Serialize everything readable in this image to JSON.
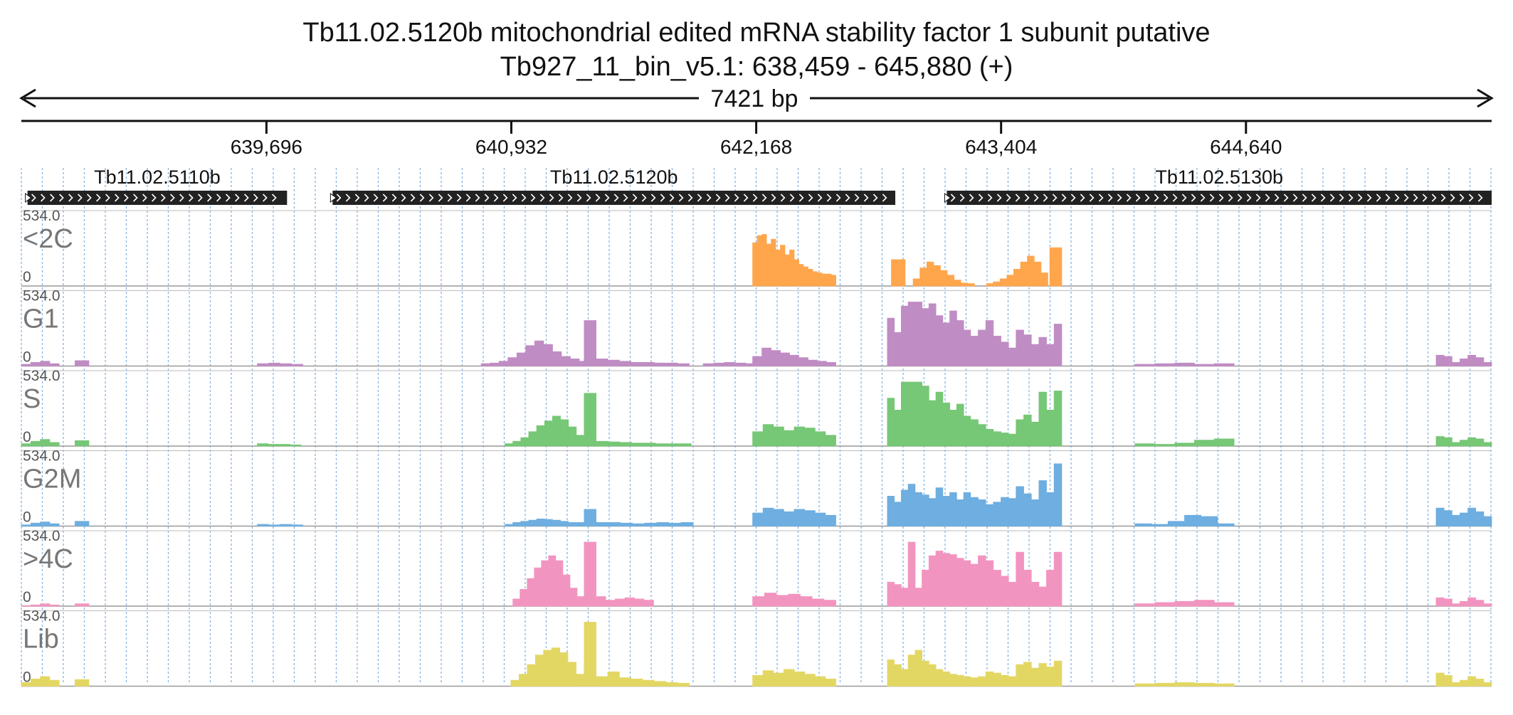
{
  "header": {
    "title": "Tb11.02.5120b  mitochondrial edited mRNA stability factor 1 subunit  putative",
    "locus": "Tb927_11_bin_v5.1: 638,459 - 645,880 (+)",
    "span_label": "7421 bp"
  },
  "colors": {
    "gene_fill": "#222222",
    "guide_line": "#6fa8dc",
    "<2C": "#ffa64d",
    "G1": "#c08cc4",
    "S": "#76c776",
    "G2M": "#6eaee0",
    "4C_plus": "#f294c0",
    "Lib": "#e3d764"
  },
  "chart_data": {
    "type": "area",
    "region": {
      "chrom": "Tb927_11_bin_v5.1",
      "start": 638459,
      "end": 645880,
      "strand": "+"
    },
    "x_ticks": [
      "639,696",
      "640,932",
      "642,168",
      "643,404",
      "644,640"
    ],
    "x_tick_values": [
      639696,
      640932,
      642168,
      643404,
      644640
    ],
    "genes": [
      {
        "name": "Tb11.02.5110b",
        "start": 638490,
        "end": 639800,
        "strand": "+"
      },
      {
        "name": "Tb11.02.5120b",
        "start": 640030,
        "end": 642870,
        "strand": "+"
      },
      {
        "name": "Tb11.02.5130b",
        "start": 643130,
        "end": 645880,
        "strand": "+"
      }
    ],
    "ylim": [
      0,
      534.0
    ],
    "y_max_label": "534.0",
    "y_min_label": "0",
    "series": [
      {
        "name": "<2C",
        "color": "#ffa64d",
        "segments": [
          {
            "x0": 642150,
            "x1": 642570,
            "values": [
              360,
              420,
              430,
              350,
              390,
              300,
              340,
              260,
              300,
              220,
              180,
              160,
              140,
              120,
              110,
              100,
              100,
              90
            ]
          },
          {
            "x0": 642850,
            "x1": 642920,
            "values": [
              220,
              220
            ]
          },
          {
            "x0": 642960,
            "x1": 643270,
            "values": [
              60,
              150,
              200,
              170,
              130,
              90,
              50,
              25,
              20
            ]
          },
          {
            "x0": 643330,
            "x1": 643640,
            "values": [
              20,
              35,
              60,
              90,
              140,
              200,
              250,
              200,
              110
            ]
          },
          {
            "x0": 643650,
            "x1": 643710,
            "values": [
              320,
              320
            ]
          }
        ]
      },
      {
        "name": "G1",
        "color": "#c08cc4",
        "segments": [
          {
            "x0": 638459,
            "x1": 638650,
            "values": [
              15,
              30,
              40,
              20
            ]
          },
          {
            "x0": 638730,
            "x1": 638800,
            "values": [
              45,
              45
            ]
          },
          {
            "x0": 639650,
            "x1": 639880,
            "values": [
              20,
              25,
              20,
              15
            ]
          },
          {
            "x0": 640780,
            "x1": 641320,
            "values": [
              20,
              25,
              40,
              70,
              110,
              170,
              210,
              180,
              120,
              80,
              60,
              40
            ]
          },
          {
            "x0": 641300,
            "x1": 641360,
            "values": [
              380,
              380
            ]
          },
          {
            "x0": 641360,
            "x1": 641830,
            "values": [
              60,
              50,
              40,
              30,
              30,
              25,
              25,
              20
            ]
          },
          {
            "x0": 641900,
            "x1": 642170,
            "values": [
              20,
              25,
              30,
              25,
              20
            ]
          },
          {
            "x0": 642150,
            "x1": 642570,
            "values": [
              80,
              150,
              130,
              110,
              90,
              70,
              50,
              40,
              30
            ]
          },
          {
            "x0": 642830,
            "x1": 643250,
            "values": [
              400,
              280,
              500,
              680,
              580,
              480,
              520,
              420,
              360,
              460,
              380,
              300
            ]
          },
          {
            "x0": 643250,
            "x1": 643710,
            "values": [
              250,
              300,
              380,
              250,
              200,
              150,
              300,
              260,
              180,
              240,
              180,
              350
            ]
          },
          {
            "x0": 644080,
            "x1": 644580,
            "values": [
              15,
              20,
              25,
              15,
              20
            ]
          },
          {
            "x0": 645600,
            "x1": 645880,
            "values": [
              90,
              80,
              30,
              60,
              90,
              70,
              30
            ]
          }
        ]
      },
      {
        "name": "S",
        "color": "#76c776",
        "segments": [
          {
            "x0": 638459,
            "x1": 638650,
            "values": [
              20,
              40,
              55,
              30
            ]
          },
          {
            "x0": 638730,
            "x1": 638800,
            "values": [
              45,
              45
            ]
          },
          {
            "x0": 639650,
            "x1": 639870,
            "values": [
              20,
              15,
              15,
              10
            ]
          },
          {
            "x0": 640900,
            "x1": 641300,
            "values": [
              20,
              40,
              70,
              120,
              170,
              210,
              250,
              220,
              160,
              90
            ]
          },
          {
            "x0": 641300,
            "x1": 641360,
            "values": [
              440,
              440
            ]
          },
          {
            "x0": 641360,
            "x1": 641840,
            "values": [
              40,
              35,
              30,
              25,
              25,
              20,
              20,
              20
            ]
          },
          {
            "x0": 642150,
            "x1": 642570,
            "values": [
              120,
              180,
              160,
              130,
              160,
              150,
              120,
              90
            ]
          },
          {
            "x0": 642830,
            "x1": 643250,
            "values": [
              400,
              300,
              550,
              620,
              560,
              500,
              380,
              450,
              360,
              300,
              350,
              250
            ]
          },
          {
            "x0": 643250,
            "x1": 643710,
            "values": [
              220,
              180,
              140,
              120,
              110,
              100,
              220,
              260,
              200,
              450,
              300,
              460
            ]
          },
          {
            "x0": 644080,
            "x1": 644580,
            "values": [
              20,
              15,
              25,
              50,
              60
            ]
          },
          {
            "x0": 645600,
            "x1": 645880,
            "values": [
              80,
              70,
              30,
              50,
              70,
              60,
              30
            ]
          }
        ]
      },
      {
        "name": "G2M",
        "color": "#6eaee0",
        "segments": [
          {
            "x0": 638459,
            "x1": 638650,
            "values": [
              10,
              25,
              35,
              20
            ]
          },
          {
            "x0": 638730,
            "x1": 638800,
            "values": [
              40,
              40
            ]
          },
          {
            "x0": 639650,
            "x1": 639880,
            "values": [
              15,
              10,
              15,
              10
            ]
          },
          {
            "x0": 640900,
            "x1": 641300,
            "values": [
              15,
              30,
              40,
              50,
              60,
              55,
              50,
              40,
              30,
              30
            ]
          },
          {
            "x0": 641300,
            "x1": 641360,
            "values": [
              140,
              140
            ]
          },
          {
            "x0": 641360,
            "x1": 641850,
            "values": [
              30,
              30,
              25,
              20,
              25,
              30,
              25,
              30
            ]
          },
          {
            "x0": 642150,
            "x1": 642570,
            "values": [
              110,
              150,
              140,
              120,
              140,
              130,
              110,
              90
            ]
          },
          {
            "x0": 642830,
            "x1": 643250,
            "values": [
              250,
              200,
              300,
              350,
              280,
              260,
              230,
              320,
              250,
              280,
              220,
              280
            ]
          },
          {
            "x0": 643250,
            "x1": 643710,
            "values": [
              240,
              220,
              180,
              200,
              240,
              230,
              330,
              270,
              220,
              380,
              280,
              520
            ]
          },
          {
            "x0": 644080,
            "x1": 644580,
            "values": [
              20,
              15,
              40,
              90,
              80,
              20
            ]
          },
          {
            "x0": 645600,
            "x1": 645880,
            "values": [
              150,
              130,
              90,
              110,
              150,
              120,
              80
            ]
          }
        ]
      },
      {
        "name": ">4C",
        "color": "#f294c0",
        "segments": [
          {
            "x0": 638459,
            "x1": 638650,
            "values": [
              5,
              10,
              20,
              10
            ]
          },
          {
            "x0": 638730,
            "x1": 638800,
            "values": [
              20,
              20
            ]
          },
          {
            "x0": 640940,
            "x1": 641300,
            "values": [
              60,
              140,
              230,
              320,
              380,
              420,
              380,
              260,
              150,
              80
            ]
          },
          {
            "x0": 641300,
            "x1": 641360,
            "values": [
              534,
              534
            ]
          },
          {
            "x0": 641360,
            "x1": 641650,
            "values": [
              80,
              50,
              60,
              70,
              60,
              50
            ]
          },
          {
            "x0": 642150,
            "x1": 642570,
            "values": [
              80,
              110,
              90,
              100,
              80,
              60,
              50
            ]
          },
          {
            "x0": 642830,
            "x1": 643250,
            "values": [
              200,
              180,
              150,
              534,
              150,
              300,
              420,
              460,
              440,
              430,
              400,
              380
            ]
          },
          {
            "x0": 643250,
            "x1": 643710,
            "values": [
              350,
              420,
              380,
              300,
              250,
              200,
              450,
              300,
              200,
              160,
              300,
              450
            ]
          },
          {
            "x0": 644080,
            "x1": 644580,
            "values": [
              20,
              30,
              40,
              50,
              30
            ]
          },
          {
            "x0": 645600,
            "x1": 645880,
            "values": [
              70,
              60,
              20,
              40,
              70,
              50,
              20
            ]
          }
        ]
      },
      {
        "name": "Lib",
        "color": "#e3d764",
        "segments": [
          {
            "x0": 638459,
            "x1": 638650,
            "values": [
              30,
              60,
              80,
              50
            ]
          },
          {
            "x0": 638730,
            "x1": 638800,
            "values": [
              55,
              55
            ]
          },
          {
            "x0": 640930,
            "x1": 641300,
            "values": [
              50,
              100,
              180,
              260,
              300,
              320,
              280,
              200,
              100
            ]
          },
          {
            "x0": 641300,
            "x1": 641360,
            "values": [
              534,
              534
            ]
          },
          {
            "x0": 641360,
            "x1": 641830,
            "values": [
              80,
              120,
              70,
              60,
              50,
              40,
              30,
              25
            ]
          },
          {
            "x0": 642150,
            "x1": 642570,
            "values": [
              90,
              130,
              110,
              140,
              120,
              100,
              80,
              60
            ]
          },
          {
            "x0": 642830,
            "x1": 643250,
            "values": [
              220,
              180,
              140,
              260,
              300,
              210,
              180,
              140,
              120,
              100,
              90,
              80
            ]
          },
          {
            "x0": 643250,
            "x1": 643710,
            "values": [
              70,
              80,
              120,
              110,
              90,
              80,
              180,
              200,
              150,
              190,
              160,
              210
            ]
          },
          {
            "x0": 644080,
            "x1": 644580,
            "values": [
              20,
              25,
              30,
              25,
              20
            ]
          },
          {
            "x0": 645600,
            "x1": 645880,
            "values": [
              110,
              90,
              30,
              50,
              80,
              60,
              30
            ]
          }
        ]
      }
    ]
  }
}
